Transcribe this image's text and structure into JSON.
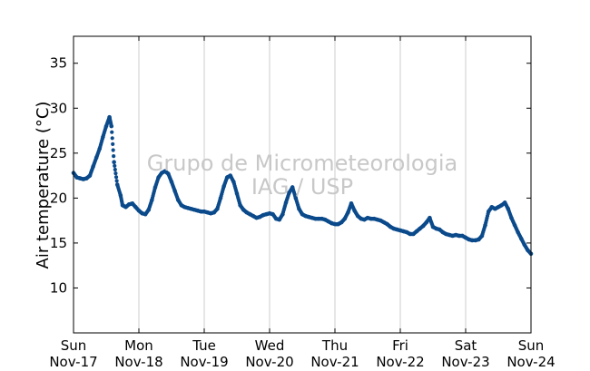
{
  "chart_data": {
    "type": "scatter",
    "ylabel": "Air temperature (°C)",
    "xlabel": "",
    "ylim": [
      5,
      38
    ],
    "yticks": [
      10,
      15,
      20,
      25,
      30,
      35
    ],
    "x_unit": "day",
    "xlim": [
      0,
      7
    ],
    "xticks": [
      {
        "day": "Sun",
        "date": "Nov-17",
        "x": 0
      },
      {
        "day": "Mon",
        "date": "Nov-18",
        "x": 1
      },
      {
        "day": "Tue",
        "date": "Nov-19",
        "x": 2
      },
      {
        "day": "Wed",
        "date": "Nov-20",
        "x": 3
      },
      {
        "day": "Thu",
        "date": "Nov-21",
        "x": 4
      },
      {
        "day": "Fri",
        "date": "Nov-22",
        "x": 5
      },
      {
        "day": "Sat",
        "date": "Nov-23",
        "x": 6
      },
      {
        "day": "Sun",
        "date": "Nov-24",
        "x": 7
      }
    ],
    "grid": "vertical",
    "marker_color": "#0b4a8b",
    "watermark": [
      "Grupo de Micrometeorologia",
      "IAG / USP"
    ],
    "series": [
      {
        "points": [
          [
            0.0,
            22.8
          ],
          [
            0.05,
            22.3
          ],
          [
            0.1,
            22.2
          ],
          [
            0.15,
            22.1
          ],
          [
            0.2,
            22.2
          ],
          [
            0.25,
            22.5
          ],
          [
            0.3,
            23.5
          ],
          [
            0.35,
            24.5
          ],
          [
            0.4,
            25.5
          ],
          [
            0.45,
            26.8
          ],
          [
            0.5,
            28.0
          ],
          [
            0.55,
            29.0
          ],
          [
            0.58,
            28.0
          ],
          [
            0.62,
            24.0
          ],
          [
            0.67,
            21.5
          ],
          [
            0.72,
            20.3
          ],
          [
            0.75,
            19.2
          ],
          [
            0.8,
            19.0
          ],
          [
            0.85,
            19.3
          ],
          [
            0.9,
            19.4
          ],
          [
            0.95,
            19.0
          ],
          [
            1.0,
            18.6
          ],
          [
            1.05,
            18.3
          ],
          [
            1.1,
            18.2
          ],
          [
            1.15,
            18.7
          ],
          [
            1.2,
            19.8
          ],
          [
            1.25,
            21.2
          ],
          [
            1.3,
            22.3
          ],
          [
            1.35,
            22.8
          ],
          [
            1.4,
            23.0
          ],
          [
            1.45,
            22.7
          ],
          [
            1.5,
            21.8
          ],
          [
            1.55,
            20.8
          ],
          [
            1.6,
            19.8
          ],
          [
            1.65,
            19.2
          ],
          [
            1.7,
            19.0
          ],
          [
            1.75,
            18.9
          ],
          [
            1.8,
            18.8
          ],
          [
            1.85,
            18.7
          ],
          [
            1.9,
            18.6
          ],
          [
            1.95,
            18.5
          ],
          [
            2.0,
            18.5
          ],
          [
            2.05,
            18.4
          ],
          [
            2.1,
            18.3
          ],
          [
            2.15,
            18.4
          ],
          [
            2.2,
            18.8
          ],
          [
            2.25,
            20.0
          ],
          [
            2.3,
            21.3
          ],
          [
            2.35,
            22.3
          ],
          [
            2.4,
            22.5
          ],
          [
            2.45,
            21.8
          ],
          [
            2.5,
            20.5
          ],
          [
            2.55,
            19.2
          ],
          [
            2.6,
            18.7
          ],
          [
            2.65,
            18.4
          ],
          [
            2.7,
            18.2
          ],
          [
            2.75,
            18.0
          ],
          [
            2.8,
            17.8
          ],
          [
            2.85,
            17.9
          ],
          [
            2.9,
            18.1
          ],
          [
            2.95,
            18.2
          ],
          [
            3.0,
            18.3
          ],
          [
            3.05,
            18.2
          ],
          [
            3.1,
            17.7
          ],
          [
            3.15,
            17.6
          ],
          [
            3.2,
            18.2
          ],
          [
            3.25,
            19.5
          ],
          [
            3.3,
            20.6
          ],
          [
            3.35,
            21.2
          ],
          [
            3.4,
            20.0
          ],
          [
            3.45,
            18.8
          ],
          [
            3.5,
            18.2
          ],
          [
            3.55,
            18.0
          ],
          [
            3.6,
            17.9
          ],
          [
            3.65,
            17.8
          ],
          [
            3.7,
            17.7
          ],
          [
            3.75,
            17.7
          ],
          [
            3.8,
            17.7
          ],
          [
            3.85,
            17.6
          ],
          [
            3.9,
            17.4
          ],
          [
            3.95,
            17.2
          ],
          [
            4.0,
            17.1
          ],
          [
            4.05,
            17.1
          ],
          [
            4.1,
            17.3
          ],
          [
            4.15,
            17.7
          ],
          [
            4.2,
            18.4
          ],
          [
            4.25,
            19.4
          ],
          [
            4.3,
            18.6
          ],
          [
            4.35,
            18.0
          ],
          [
            4.4,
            17.7
          ],
          [
            4.45,
            17.6
          ],
          [
            4.5,
            17.8
          ],
          [
            4.55,
            17.7
          ],
          [
            4.6,
            17.7
          ],
          [
            4.65,
            17.6
          ],
          [
            4.7,
            17.5
          ],
          [
            4.75,
            17.3
          ],
          [
            4.8,
            17.1
          ],
          [
            4.85,
            16.8
          ],
          [
            4.9,
            16.6
          ],
          [
            4.95,
            16.5
          ],
          [
            5.0,
            16.4
          ],
          [
            5.05,
            16.3
          ],
          [
            5.1,
            16.2
          ],
          [
            5.15,
            16.0
          ],
          [
            5.2,
            16.0
          ],
          [
            5.25,
            16.3
          ],
          [
            5.3,
            16.6
          ],
          [
            5.35,
            16.9
          ],
          [
            5.4,
            17.3
          ],
          [
            5.45,
            17.8
          ],
          [
            5.5,
            16.8
          ],
          [
            5.55,
            16.6
          ],
          [
            5.6,
            16.5
          ],
          [
            5.65,
            16.2
          ],
          [
            5.7,
            16.0
          ],
          [
            5.75,
            15.9
          ],
          [
            5.8,
            15.8
          ],
          [
            5.85,
            15.9
          ],
          [
            5.9,
            15.8
          ],
          [
            5.95,
            15.8
          ],
          [
            6.0,
            15.6
          ],
          [
            6.05,
            15.4
          ],
          [
            6.1,
            15.3
          ],
          [
            6.15,
            15.3
          ],
          [
            6.2,
            15.4
          ],
          [
            6.25,
            15.8
          ],
          [
            6.3,
            17.0
          ],
          [
            6.35,
            18.5
          ],
          [
            6.4,
            19.0
          ],
          [
            6.45,
            18.8
          ],
          [
            6.5,
            19.0
          ],
          [
            6.55,
            19.2
          ],
          [
            6.6,
            19.5
          ],
          [
            6.65,
            18.8
          ],
          [
            6.7,
            17.8
          ],
          [
            6.75,
            17.0
          ],
          [
            6.8,
            16.2
          ],
          [
            6.85,
            15.5
          ],
          [
            6.9,
            14.8
          ],
          [
            6.95,
            14.2
          ],
          [
            7.0,
            13.8
          ]
        ]
      }
    ]
  }
}
